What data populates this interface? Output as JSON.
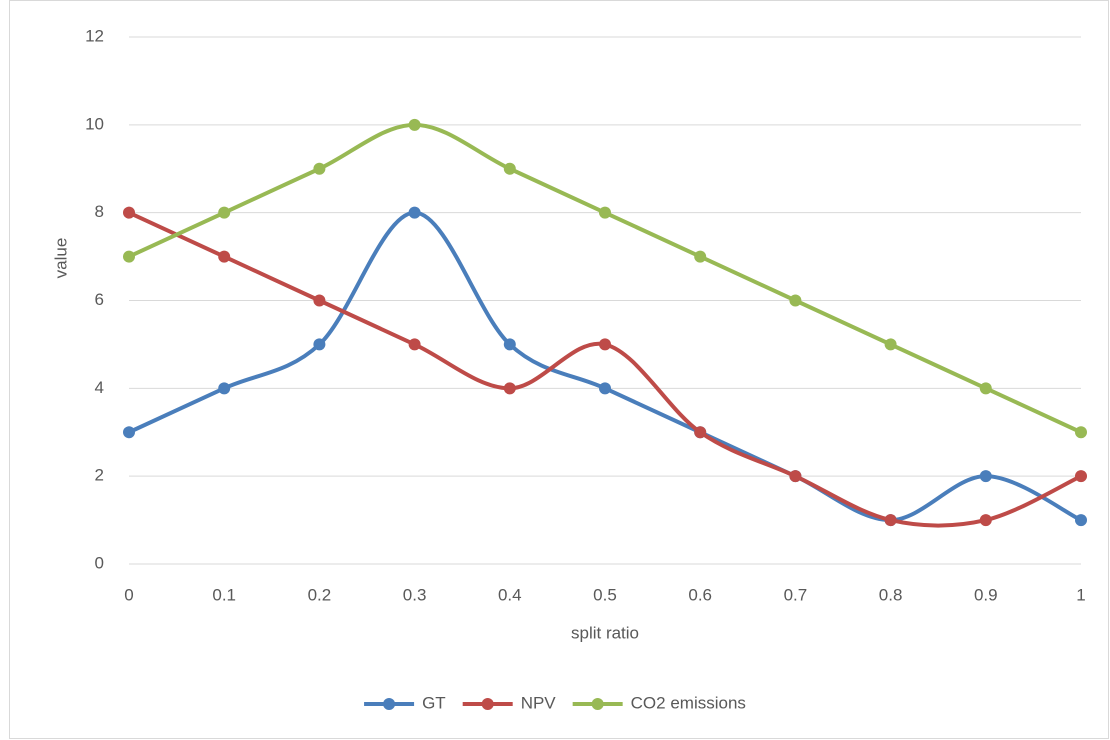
{
  "chart_data": {
    "type": "line",
    "smooth": true,
    "x_label": "split ratio",
    "y_label": "value",
    "x": [
      0,
      0.1,
      0.2,
      0.3,
      0.4,
      0.5,
      0.6,
      0.7,
      0.8,
      0.9,
      1
    ],
    "xlim": [
      0,
      1
    ],
    "xticks": [
      0,
      0.1,
      0.2,
      0.3,
      0.4,
      0.5,
      0.6,
      0.7,
      0.8,
      0.9,
      1
    ],
    "ylim": [
      0,
      12
    ],
    "yticks": [
      0,
      2,
      4,
      6,
      8,
      10,
      12
    ],
    "grid": true,
    "legend": "bottom",
    "series": [
      {
        "name": "GT",
        "color": "#4a7ebb",
        "values": [
          3,
          4,
          5,
          8,
          5,
          4,
          3,
          2,
          1,
          2,
          1
        ]
      },
      {
        "name": "NPV",
        "color": "#be4b48",
        "values": [
          8,
          7,
          6,
          5,
          4,
          5,
          3,
          2,
          1,
          1,
          2
        ]
      },
      {
        "name": "CO2 emissions",
        "color": "#98b954",
        "values": [
          7,
          8,
          9,
          10,
          9,
          8,
          7,
          6,
          5,
          4,
          3
        ]
      }
    ]
  }
}
